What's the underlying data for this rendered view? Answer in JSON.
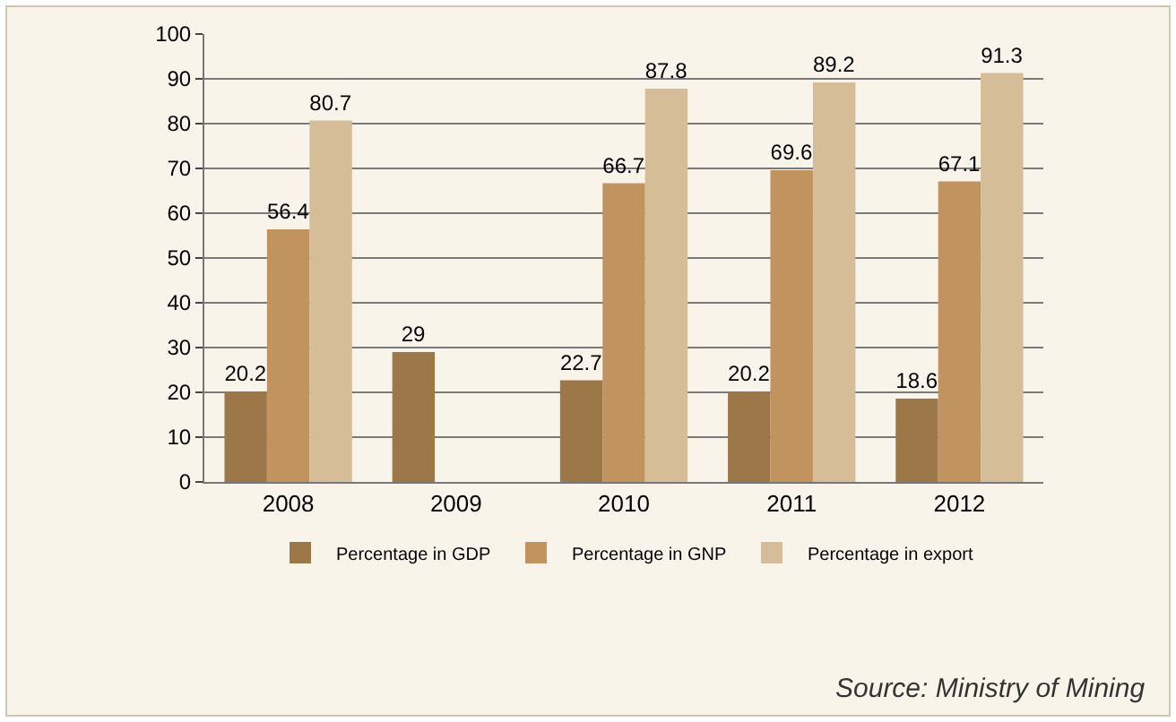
{
  "chart_data": {
    "type": "bar",
    "categories": [
      "2008",
      "2009",
      "2010",
      "2011",
      "2012"
    ],
    "series": [
      {
        "name": "Percentage in GDP",
        "color": "#9c7849",
        "values": [
          20.2,
          29,
          22.7,
          20.2,
          18.6
        ]
      },
      {
        "name": "Percentage in GNP",
        "color": "#c0935f",
        "values": [
          56.4,
          null,
          66.7,
          69.6,
          67.1
        ]
      },
      {
        "name": "Percentage in export",
        "color": "#d5bd98",
        "values": [
          80.7,
          null,
          87.8,
          89.2,
          91.3
        ]
      }
    ],
    "ylim": [
      0,
      100
    ],
    "yticks": [
      0,
      10,
      20,
      30,
      40,
      50,
      60,
      70,
      80,
      90,
      100
    ],
    "grid": "y",
    "legend": "bottom",
    "data_labels": true,
    "annotations": [
      "Source: Ministry of Mining"
    ]
  }
}
